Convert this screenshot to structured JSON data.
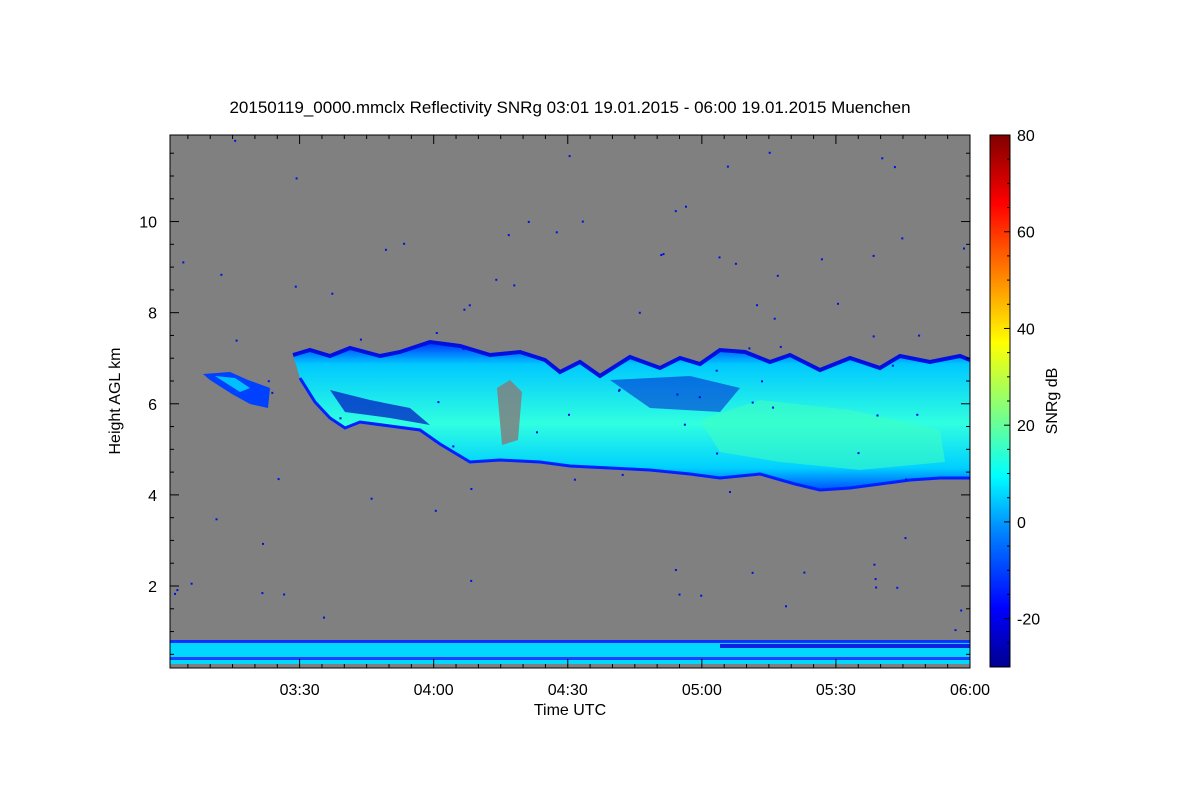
{
  "chart_data": {
    "type": "heatmap",
    "title": "20150119_0000.mmclx Reflectivity SNRg   03:01 19.01.2015 - 06:00 19.01.2015 Muenchen",
    "xlabel": "Time UTC",
    "ylabel": "Height AGL km",
    "colorbar_label": "SNRg dB",
    "x_range": [
      "03:01",
      "06:00"
    ],
    "y_range_km": [
      0.2,
      11.9
    ],
    "color_range_db": [
      -30,
      80
    ],
    "x_ticks": [
      "03:30",
      "04:00",
      "04:30",
      "05:00",
      "05:30",
      "06:00"
    ],
    "y_ticks": [
      2,
      4,
      6,
      8,
      10
    ],
    "colorbar_ticks": [
      -20,
      0,
      20,
      40,
      60,
      80
    ],
    "background_color": "#808080",
    "features": [
      {
        "name": "cloud-layer",
        "time_start": "03:09",
        "time_end": "06:00",
        "base_km_range": [
          4.2,
          6.7
        ],
        "top_km_range": [
          6.3,
          7.2
        ],
        "snr_db_range": [
          -25,
          15
        ]
      },
      {
        "name": "near-surface-layer",
        "time_start": "03:01",
        "time_end": "06:00",
        "base_km": 0.25,
        "top_km": 0.8,
        "snr_db_range": [
          -10,
          10
        ]
      }
    ]
  },
  "colormap": [
    "#00008f",
    "#0000ff",
    "#0080ff",
    "#00ffff",
    "#80ff80",
    "#ffff00",
    "#ff8000",
    "#ff0000",
    "#800000"
  ]
}
